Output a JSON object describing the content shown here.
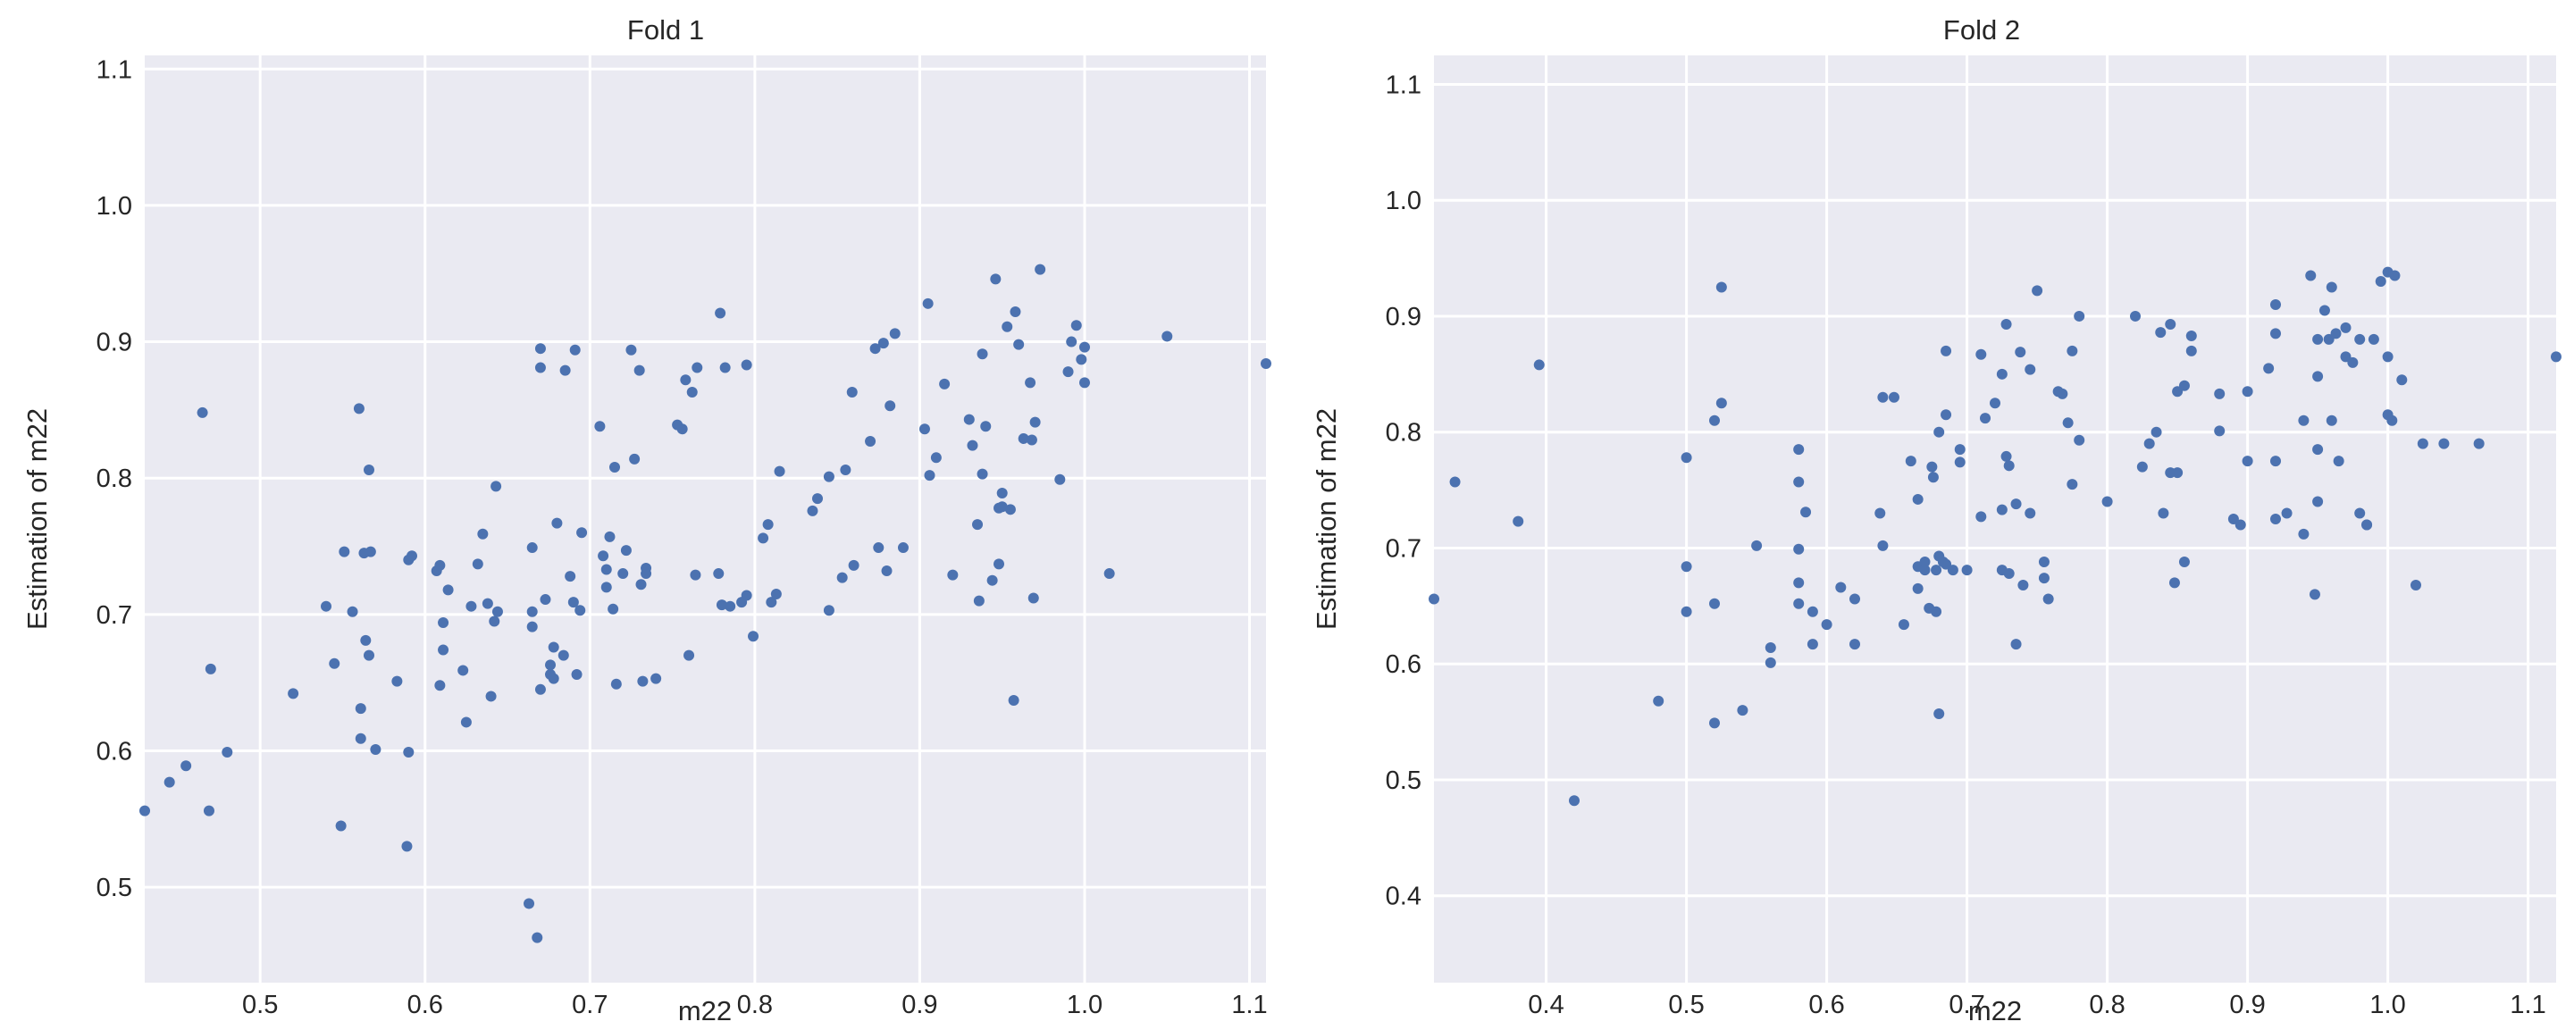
{
  "chart_data": [
    {
      "type": "scatter",
      "title": "Fold 1",
      "xlabel": "m22",
      "ylabel": "Estimation of m22",
      "xlim": [
        0.43,
        1.11
      ],
      "ylim": [
        0.43,
        1.11
      ],
      "xticks": [
        0.5,
        0.6,
        0.7,
        0.8,
        0.9,
        1.0,
        1.1
      ],
      "yticks": [
        0.5,
        0.6,
        0.7,
        0.8,
        0.9,
        1.0,
        1.1
      ],
      "tick_labels": {
        "x": [
          "0.5",
          "0.6",
          "0.7",
          "0.8",
          "0.9",
          "1.0",
          "1.1"
        ],
        "y": [
          "0.5",
          "0.6",
          "0.7",
          "0.8",
          "0.9",
          "1.0",
          "1.1"
        ]
      },
      "grid": true,
      "colors": {
        "point": "#4c72b0",
        "background": "#eaeaf2",
        "grid": "#ffffff"
      },
      "points": [
        [
          0.43,
          0.556
        ],
        [
          0.445,
          0.577
        ],
        [
          0.455,
          0.589
        ],
        [
          0.465,
          0.848
        ],
        [
          0.469,
          0.556
        ],
        [
          0.47,
          0.66
        ],
        [
          0.48,
          0.599
        ],
        [
          0.52,
          0.642
        ],
        [
          0.54,
          0.706
        ],
        [
          0.545,
          0.664
        ],
        [
          0.549,
          0.545
        ],
        [
          0.551,
          0.746
        ],
        [
          0.556,
          0.702
        ],
        [
          0.56,
          0.851
        ],
        [
          0.561,
          0.609
        ],
        [
          0.561,
          0.631
        ],
        [
          0.563,
          0.745
        ],
        [
          0.564,
          0.681
        ],
        [
          0.566,
          0.806
        ],
        [
          0.567,
          0.746
        ],
        [
          0.566,
          0.67
        ],
        [
          0.57,
          0.601
        ],
        [
          0.583,
          0.651
        ],
        [
          0.589,
          0.53
        ],
        [
          0.59,
          0.599
        ],
        [
          0.59,
          0.74
        ],
        [
          0.592,
          0.743
        ],
        [
          0.607,
          0.732
        ],
        [
          0.609,
          0.736
        ],
        [
          0.609,
          0.648
        ],
        [
          0.611,
          0.694
        ],
        [
          0.611,
          0.674
        ],
        [
          0.614,
          0.718
        ],
        [
          0.623,
          0.659
        ],
        [
          0.625,
          0.621
        ],
        [
          0.628,
          0.706
        ],
        [
          0.632,
          0.737
        ],
        [
          0.635,
          0.759
        ],
        [
          0.638,
          0.708
        ],
        [
          0.64,
          0.64
        ],
        [
          0.642,
          0.695
        ],
        [
          0.643,
          0.794
        ],
        [
          0.644,
          0.702
        ],
        [
          0.663,
          0.488
        ],
        [
          0.665,
          0.749
        ],
        [
          0.665,
          0.702
        ],
        [
          0.665,
          0.691
        ],
        [
          0.668,
          0.463
        ],
        [
          0.67,
          0.895
        ],
        [
          0.67,
          0.881
        ],
        [
          0.67,
          0.645
        ],
        [
          0.673,
          0.711
        ],
        [
          0.676,
          0.656
        ],
        [
          0.676,
          0.663
        ],
        [
          0.678,
          0.653
        ],
        [
          0.678,
          0.676
        ],
        [
          0.68,
          0.767
        ],
        [
          0.684,
          0.67
        ],
        [
          0.685,
          0.879
        ],
        [
          0.688,
          0.728
        ],
        [
          0.69,
          0.709
        ],
        [
          0.691,
          0.894
        ],
        [
          0.692,
          0.656
        ],
        [
          0.694,
          0.703
        ],
        [
          0.695,
          0.76
        ],
        [
          0.706,
          0.838
        ],
        [
          0.708,
          0.743
        ],
        [
          0.71,
          0.733
        ],
        [
          0.71,
          0.72
        ],
        [
          0.712,
          0.757
        ],
        [
          0.714,
          0.704
        ],
        [
          0.715,
          0.808
        ],
        [
          0.716,
          0.649
        ],
        [
          0.72,
          0.73
        ],
        [
          0.722,
          0.747
        ],
        [
          0.725,
          0.894
        ],
        [
          0.727,
          0.814
        ],
        [
          0.73,
          0.879
        ],
        [
          0.731,
          0.722
        ],
        [
          0.732,
          0.651
        ],
        [
          0.734,
          0.734
        ],
        [
          0.734,
          0.73
        ],
        [
          0.74,
          0.653
        ],
        [
          0.753,
          0.839
        ],
        [
          0.756,
          0.836
        ],
        [
          0.758,
          0.872
        ],
        [
          0.76,
          0.67
        ],
        [
          0.762,
          0.863
        ],
        [
          0.764,
          0.729
        ],
        [
          0.765,
          0.881
        ],
        [
          0.778,
          0.73
        ],
        [
          0.779,
          0.921
        ],
        [
          0.78,
          0.707
        ],
        [
          0.782,
          0.881
        ],
        [
          0.785,
          0.706
        ],
        [
          0.792,
          0.709
        ],
        [
          0.795,
          0.714
        ],
        [
          0.795,
          0.883
        ],
        [
          0.799,
          0.684
        ],
        [
          0.805,
          0.756
        ],
        [
          0.808,
          0.766
        ],
        [
          0.81,
          0.709
        ],
        [
          0.813,
          0.715
        ],
        [
          0.815,
          0.805
        ],
        [
          0.835,
          0.776
        ],
        [
          0.838,
          0.785
        ],
        [
          0.845,
          0.801
        ],
        [
          0.845,
          0.703
        ],
        [
          0.853,
          0.727
        ],
        [
          0.855,
          0.806
        ],
        [
          0.859,
          0.863
        ],
        [
          0.86,
          0.736
        ],
        [
          0.87,
          0.827
        ],
        [
          0.873,
          0.895
        ],
        [
          0.875,
          0.749
        ],
        [
          0.878,
          0.899
        ],
        [
          0.88,
          0.732
        ],
        [
          0.882,
          0.853
        ],
        [
          0.885,
          0.906
        ],
        [
          0.89,
          0.749
        ],
        [
          0.903,
          0.836
        ],
        [
          0.905,
          0.928
        ],
        [
          0.906,
          0.802
        ],
        [
          0.91,
          0.815
        ],
        [
          0.915,
          0.869
        ],
        [
          0.92,
          0.729
        ],
        [
          0.93,
          0.843
        ],
        [
          0.932,
          0.824
        ],
        [
          0.935,
          0.766
        ],
        [
          0.936,
          0.71
        ],
        [
          0.938,
          0.891
        ],
        [
          0.938,
          0.803
        ],
        [
          0.94,
          0.838
        ],
        [
          0.944,
          0.725
        ],
        [
          0.946,
          0.946
        ],
        [
          0.948,
          0.737
        ],
        [
          0.948,
          0.778
        ],
        [
          0.95,
          0.779
        ],
        [
          0.95,
          0.789
        ],
        [
          0.953,
          0.911
        ],
        [
          0.955,
          0.777
        ],
        [
          0.957,
          0.637
        ],
        [
          0.958,
          0.922
        ],
        [
          0.96,
          0.898
        ],
        [
          0.963,
          0.829
        ],
        [
          0.967,
          0.87
        ],
        [
          0.968,
          0.828
        ],
        [
          0.969,
          0.712
        ],
        [
          0.97,
          0.841
        ],
        [
          0.973,
          0.953
        ],
        [
          0.985,
          0.799
        ],
        [
          0.99,
          0.878
        ],
        [
          0.992,
          0.9
        ],
        [
          0.995,
          0.912
        ],
        [
          0.998,
          0.887
        ],
        [
          1.0,
          0.87
        ],
        [
          1.0,
          0.896
        ],
        [
          1.015,
          0.73
        ],
        [
          1.05,
          0.904
        ],
        [
          1.11,
          0.884
        ]
      ]
    },
    {
      "type": "scatter",
      "title": "Fold 2",
      "xlabel": "m22",
      "ylabel": "Estimation of m22",
      "xlim": [
        0.32,
        1.12
      ],
      "ylim": [
        0.325,
        1.125
      ],
      "xticks": [
        0.4,
        0.5,
        0.6,
        0.7,
        0.8,
        0.9,
        1.0,
        1.1
      ],
      "yticks": [
        0.4,
        0.5,
        0.6,
        0.7,
        0.8,
        0.9,
        1.0,
        1.1
      ],
      "tick_labels": {
        "x": [
          "0.4",
          "0.5",
          "0.6",
          "0.7",
          "0.8",
          "0.9",
          "1.0",
          "1.1"
        ],
        "y": [
          "0.4",
          "0.5",
          "0.6",
          "0.7",
          "0.8",
          "0.9",
          "1.0",
          "1.1"
        ]
      },
      "grid": true,
      "colors": {
        "point": "#4c72b0",
        "background": "#eaeaf2",
        "grid": "#ffffff"
      },
      "points": [
        [
          0.32,
          0.656
        ],
        [
          0.335,
          0.757
        ],
        [
          0.38,
          0.723
        ],
        [
          0.395,
          0.858
        ],
        [
          0.42,
          0.482
        ],
        [
          0.48,
          0.568
        ],
        [
          0.5,
          0.778
        ],
        [
          0.5,
          0.684
        ],
        [
          0.5,
          0.645
        ],
        [
          0.52,
          0.549
        ],
        [
          0.52,
          0.652
        ],
        [
          0.52,
          0.81
        ],
        [
          0.525,
          0.925
        ],
        [
          0.525,
          0.825
        ],
        [
          0.54,
          0.56
        ],
        [
          0.55,
          0.702
        ],
        [
          0.56,
          0.614
        ],
        [
          0.56,
          0.601
        ],
        [
          0.58,
          0.785
        ],
        [
          0.58,
          0.757
        ],
        [
          0.58,
          0.699
        ],
        [
          0.58,
          0.67
        ],
        [
          0.58,
          0.652
        ],
        [
          0.585,
          0.731
        ],
        [
          0.59,
          0.645
        ],
        [
          0.59,
          0.617
        ],
        [
          0.6,
          0.634
        ],
        [
          0.61,
          0.666
        ],
        [
          0.62,
          0.617
        ],
        [
          0.62,
          0.656
        ],
        [
          0.638,
          0.73
        ],
        [
          0.64,
          0.83
        ],
        [
          0.64,
          0.702
        ],
        [
          0.648,
          0.83
        ],
        [
          0.655,
          0.634
        ],
        [
          0.66,
          0.775
        ],
        [
          0.665,
          0.665
        ],
        [
          0.665,
          0.684
        ],
        [
          0.665,
          0.742
        ],
        [
          0.67,
          0.688
        ],
        [
          0.67,
          0.681
        ],
        [
          0.673,
          0.648
        ],
        [
          0.675,
          0.77
        ],
        [
          0.676,
          0.761
        ],
        [
          0.678,
          0.681
        ],
        [
          0.678,
          0.645
        ],
        [
          0.68,
          0.8
        ],
        [
          0.68,
          0.693
        ],
        [
          0.68,
          0.557
        ],
        [
          0.683,
          0.688
        ],
        [
          0.685,
          0.87
        ],
        [
          0.685,
          0.686
        ],
        [
          0.685,
          0.815
        ],
        [
          0.69,
          0.681
        ],
        [
          0.695,
          0.785
        ],
        [
          0.695,
          0.774
        ],
        [
          0.7,
          0.681
        ],
        [
          0.71,
          0.867
        ],
        [
          0.71,
          0.727
        ],
        [
          0.713,
          0.812
        ],
        [
          0.72,
          0.825
        ],
        [
          0.725,
          0.733
        ],
        [
          0.725,
          0.85
        ],
        [
          0.725,
          0.681
        ],
        [
          0.728,
          0.893
        ],
        [
          0.728,
          0.779
        ],
        [
          0.73,
          0.771
        ],
        [
          0.73,
          0.678
        ],
        [
          0.735,
          0.738
        ],
        [
          0.735,
          0.617
        ],
        [
          0.738,
          0.869
        ],
        [
          0.74,
          0.668
        ],
        [
          0.745,
          0.854
        ],
        [
          0.745,
          0.73
        ],
        [
          0.75,
          0.922
        ],
        [
          0.755,
          0.688
        ],
        [
          0.755,
          0.674
        ],
        [
          0.758,
          0.656
        ],
        [
          0.765,
          0.835
        ],
        [
          0.768,
          0.833
        ],
        [
          0.772,
          0.808
        ],
        [
          0.775,
          0.87
        ],
        [
          0.775,
          0.755
        ],
        [
          0.78,
          0.9
        ],
        [
          0.78,
          0.793
        ],
        [
          0.8,
          0.74
        ],
        [
          0.82,
          0.9
        ],
        [
          0.825,
          0.77
        ],
        [
          0.83,
          0.79
        ],
        [
          0.835,
          0.8
        ],
        [
          0.838,
          0.886
        ],
        [
          0.84,
          0.73
        ],
        [
          0.845,
          0.893
        ],
        [
          0.845,
          0.765
        ],
        [
          0.848,
          0.67
        ],
        [
          0.85,
          0.835
        ],
        [
          0.85,
          0.765
        ],
        [
          0.855,
          0.84
        ],
        [
          0.855,
          0.688
        ],
        [
          0.86,
          0.87
        ],
        [
          0.86,
          0.883
        ],
        [
          0.88,
          0.801
        ],
        [
          0.88,
          0.833
        ],
        [
          0.89,
          0.725
        ],
        [
          0.895,
          0.72
        ],
        [
          0.9,
          0.835
        ],
        [
          0.9,
          0.775
        ],
        [
          0.915,
          0.855
        ],
        [
          0.92,
          0.885
        ],
        [
          0.92,
          0.91
        ],
        [
          0.92,
          0.775
        ],
        [
          0.92,
          0.725
        ],
        [
          0.928,
          0.73
        ],
        [
          0.94,
          0.81
        ],
        [
          0.94,
          0.712
        ],
        [
          0.945,
          0.935
        ],
        [
          0.948,
          0.66
        ],
        [
          0.95,
          0.88
        ],
        [
          0.95,
          0.848
        ],
        [
          0.95,
          0.785
        ],
        [
          0.95,
          0.74
        ],
        [
          0.955,
          0.905
        ],
        [
          0.958,
          0.88
        ],
        [
          0.96,
          0.925
        ],
        [
          0.96,
          0.81
        ],
        [
          0.963,
          0.885
        ],
        [
          0.965,
          0.775
        ],
        [
          0.97,
          0.89
        ],
        [
          0.97,
          0.865
        ],
        [
          0.975,
          0.86
        ],
        [
          0.98,
          0.88
        ],
        [
          0.98,
          0.73
        ],
        [
          0.985,
          0.72
        ],
        [
          0.985,
          0.72
        ],
        [
          0.99,
          0.88
        ],
        [
          0.995,
          0.93
        ],
        [
          1.0,
          0.938
        ],
        [
          1.0,
          0.865
        ],
        [
          1.0,
          0.815
        ],
        [
          1.003,
          0.81
        ],
        [
          1.005,
          0.935
        ],
        [
          1.01,
          0.845
        ],
        [
          1.02,
          0.668
        ],
        [
          1.025,
          0.79
        ],
        [
          1.04,
          0.79
        ],
        [
          1.065,
          0.79
        ],
        [
          1.12,
          0.865
        ]
      ]
    }
  ]
}
